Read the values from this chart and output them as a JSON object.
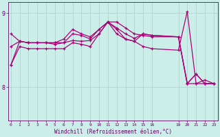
{
  "xlabel": "Windchill (Refroidissement éolien,°C)",
  "background_color": "#cceee8",
  "line_color": "#aa0077",
  "grid_color": "#aacccc",
  "axis_color": "#660066",
  "tick_color": "#660066",
  "label_color": "#660066",
  "x_ticks": [
    0,
    1,
    2,
    3,
    4,
    5,
    6,
    7,
    8,
    9,
    10,
    11,
    12,
    13,
    14,
    15,
    16,
    19,
    20,
    21,
    22,
    23
  ],
  "y_ticks": [
    8,
    9
  ],
  "ylim": [
    7.55,
    9.15
  ],
  "xlim": [
    -0.3,
    23.5
  ],
  "lines": [
    {
      "x": [
        0,
        1,
        2,
        3,
        4,
        5,
        6,
        7,
        8,
        9,
        10,
        11,
        12,
        13,
        14,
        15,
        16,
        19,
        20,
        21,
        22,
        23
      ],
      "y": [
        8.3,
        8.62,
        8.6,
        8.6,
        8.6,
        8.6,
        8.6,
        8.63,
        8.62,
        8.63,
        8.72,
        8.88,
        8.88,
        8.8,
        8.72,
        8.7,
        8.68,
        8.68,
        8.05,
        8.05,
        8.1,
        8.05
      ]
    },
    {
      "x": [
        0,
        1,
        2,
        3,
        4,
        5,
        6,
        7,
        8,
        9,
        10,
        11,
        12,
        13,
        14,
        15,
        16,
        19,
        20,
        21,
        22,
        23
      ],
      "y": [
        8.55,
        8.62,
        8.6,
        8.6,
        8.6,
        8.58,
        8.6,
        8.72,
        8.7,
        8.65,
        8.78,
        8.88,
        8.8,
        8.72,
        8.66,
        8.72,
        8.7,
        8.68,
        8.05,
        8.18,
        8.05,
        8.05
      ]
    },
    {
      "x": [
        0,
        1,
        2,
        3,
        4,
        5,
        6,
        7,
        8,
        9,
        10,
        11,
        12,
        13,
        14,
        15,
        16,
        19,
        20,
        21,
        22,
        23
      ],
      "y": [
        8.72,
        8.62,
        8.6,
        8.6,
        8.6,
        8.6,
        8.65,
        8.78,
        8.72,
        8.68,
        8.78,
        8.88,
        8.72,
        8.65,
        8.62,
        8.72,
        8.7,
        8.68,
        8.05,
        8.18,
        8.05,
        8.05
      ]
    },
    {
      "x": [
        0,
        1,
        2,
        3,
        4,
        5,
        6,
        7,
        8,
        9,
        10,
        11,
        12,
        13,
        14,
        15,
        16,
        19,
        20,
        21,
        22,
        23
      ],
      "y": [
        8.3,
        8.55,
        8.52,
        8.52,
        8.52,
        8.52,
        8.52,
        8.6,
        8.58,
        8.55,
        8.72,
        8.88,
        8.78,
        8.65,
        8.62,
        8.55,
        8.52,
        8.5,
        9.02,
        8.05,
        8.05,
        8.05
      ]
    }
  ]
}
